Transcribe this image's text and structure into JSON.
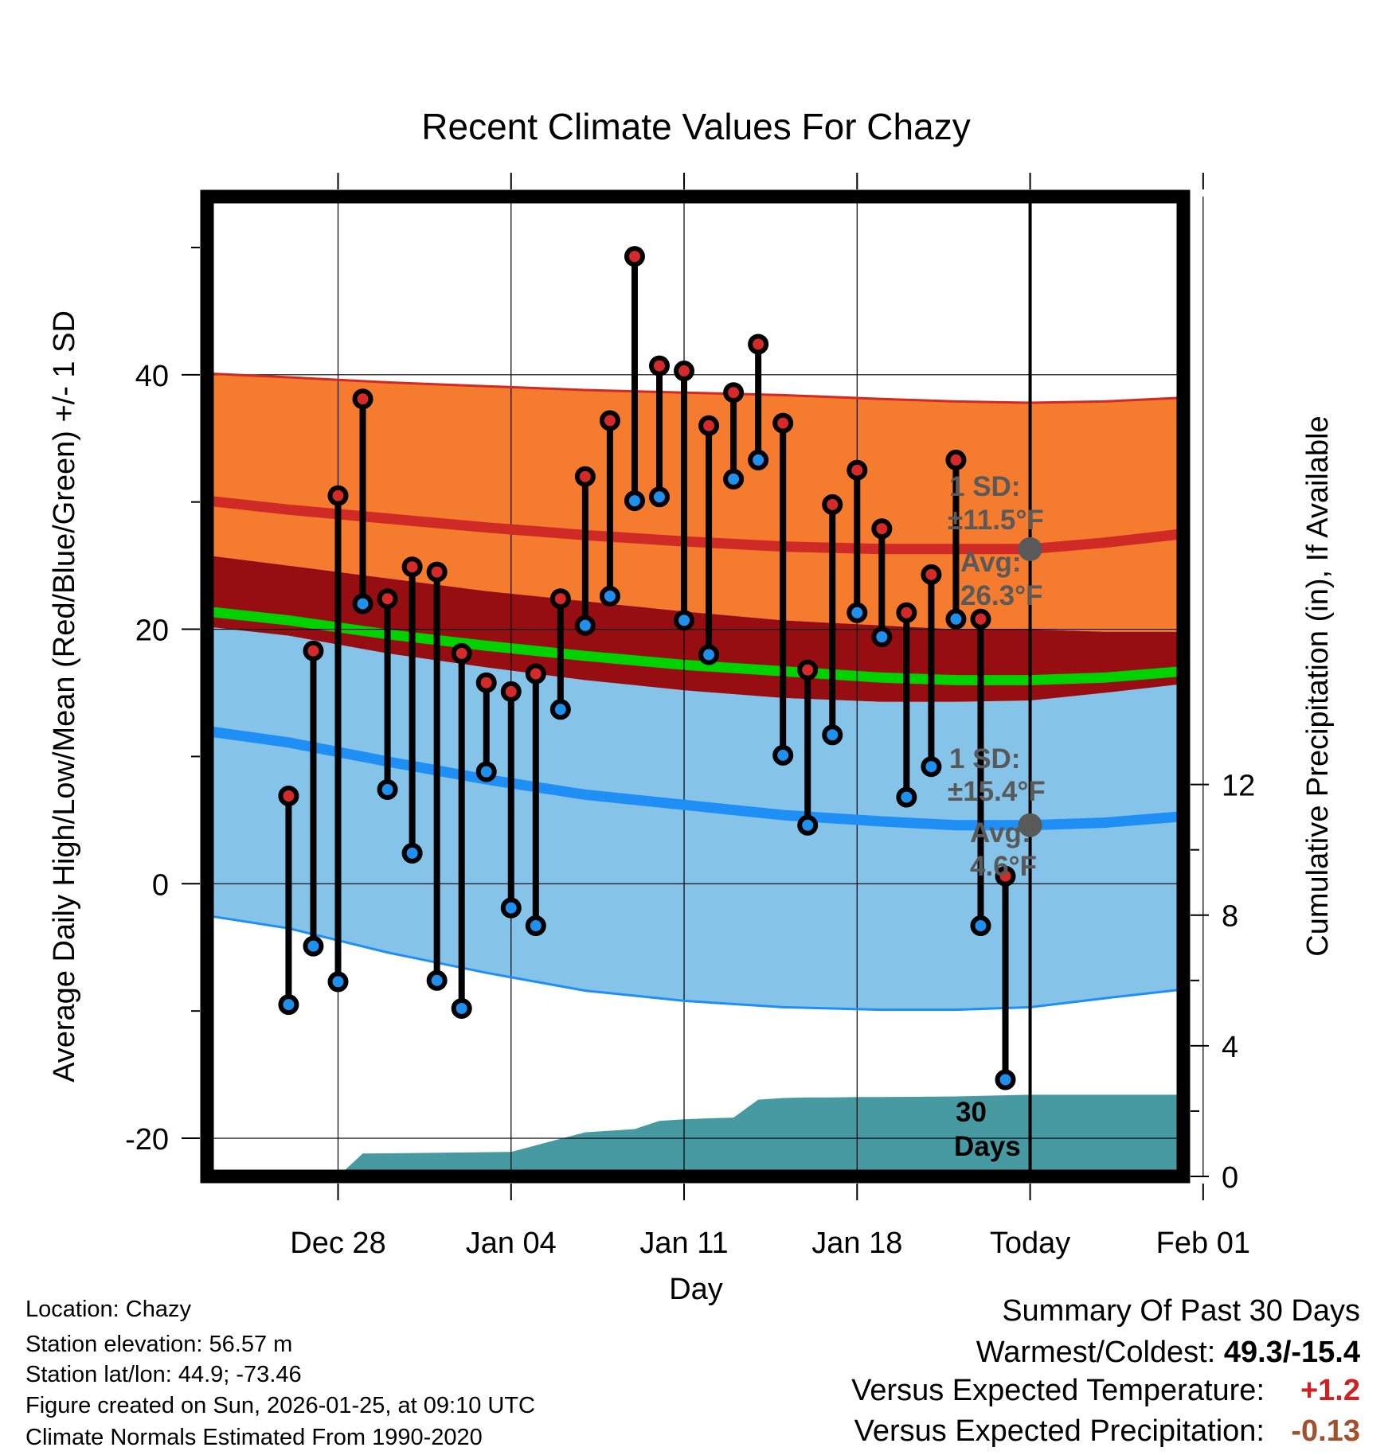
{
  "chart_data": {
    "type": "line",
    "title": "Recent Climate Values For Chazy",
    "xlabel": "Day",
    "ylabel": "Average Daily High/Low/Mean (Red/Blue/Green) +/- 1 SD",
    "y2label": "Cumulative Precipitation (in), If Available",
    "ylim": [
      -23,
      54
    ],
    "y2lim": [
      0,
      30
    ],
    "xlim": [
      -5.3,
      34.2
    ],
    "x_ticks": [
      {
        "day": 0,
        "label": "Dec 28"
      },
      {
        "day": 7,
        "label": "Jan 04"
      },
      {
        "day": 14,
        "label": "Jan 11"
      },
      {
        "day": 21,
        "label": "Jan 18"
      },
      {
        "day": 28,
        "label": "Today"
      },
      {
        "day": 35,
        "label": "Feb 01"
      }
    ],
    "y_ticks": [
      -20,
      0,
      20,
      40
    ],
    "y2_ticks": [
      0,
      4,
      8,
      12
    ],
    "today_day": 28,
    "days": [
      -2,
      -1,
      0,
      1,
      2,
      3,
      4,
      5,
      6,
      7,
      8,
      9,
      10,
      11,
      12,
      13,
      14,
      15,
      16,
      17,
      18,
      19,
      20,
      21,
      22,
      23,
      24,
      25,
      26,
      27
    ],
    "highs": [
      6.9,
      18.3,
      30.5,
      38.1,
      22.4,
      24.9,
      24.5,
      18.1,
      15.8,
      15.1,
      16.5,
      22.4,
      32.0,
      36.4,
      49.3,
      40.7,
      40.3,
      36.0,
      38.6,
      42.4,
      36.2,
      16.8,
      29.8,
      32.5,
      27.9,
      21.3,
      24.3,
      33.3,
      20.8,
      0.6
    ],
    "lows": [
      -9.5,
      -4.9,
      -7.7,
      22.0,
      7.4,
      2.4,
      -7.6,
      -9.8,
      8.8,
      -1.9,
      -3.3,
      13.7,
      20.3,
      22.6,
      30.1,
      30.4,
      20.7,
      18.0,
      31.8,
      33.3,
      10.1,
      4.6,
      11.7,
      21.3,
      19.4,
      6.8,
      9.2,
      20.8,
      -3.3,
      -15.4
    ],
    "normals": {
      "days": [
        -5.3,
        -2,
        2,
        6,
        10,
        14,
        18,
        22,
        25,
        28,
        31,
        34.2
      ],
      "high_mean": [
        30.1,
        29.4,
        28.7,
        28.0,
        27.4,
        26.9,
        26.5,
        26.3,
        26.3,
        26.3,
        26.8,
        27.5
      ],
      "high_upper": [
        40.1,
        39.8,
        39.4,
        39.1,
        38.8,
        38.6,
        38.4,
        38.1,
        37.9,
        37.8,
        37.9,
        38.2
      ],
      "low_mean": [
        12.0,
        11.1,
        9.6,
        8.2,
        7.0,
        6.2,
        5.4,
        4.9,
        4.6,
        4.6,
        4.8,
        5.3
      ],
      "low_lower": [
        -2.5,
        -3.5,
        -5.4,
        -7.0,
        -8.4,
        -9.2,
        -9.7,
        -9.9,
        -9.9,
        -9.7,
        -9.0,
        -8.3
      ],
      "mean_lower": [
        21.0,
        20.3,
        19.2,
        18.3,
        17.5,
        16.8,
        16.3,
        15.8,
        15.6,
        15.6,
        15.8,
        16.3
      ],
      "mean_upper": [
        21.8,
        21.1,
        20.0,
        19.1,
        18.3,
        17.6,
        17.1,
        16.6,
        16.4,
        16.4,
        16.6,
        17.1
      ],
      "overlap_upper": [
        25.8,
        25.0,
        24.0,
        23.0,
        22.2,
        21.4,
        20.7,
        20.3,
        20.0,
        20.0,
        19.8,
        19.8
      ],
      "overlap_lower": [
        20.2,
        19.5,
        18.1,
        17.0,
        16.0,
        15.2,
        14.6,
        14.3,
        14.3,
        14.4,
        15.0,
        15.7
      ]
    },
    "precip": {
      "days": [
        -5.3,
        0,
        1,
        7,
        8,
        9,
        10,
        11,
        12,
        13,
        14,
        15,
        16,
        17,
        18,
        19,
        20,
        21,
        22,
        25,
        28,
        29,
        34.2
      ],
      "values": [
        0,
        0,
        0.7,
        0.75,
        0.95,
        1.15,
        1.35,
        1.4,
        1.45,
        1.7,
        1.75,
        1.78,
        1.8,
        2.35,
        2.4,
        2.42,
        2.42,
        2.43,
        2.43,
        2.45,
        2.5,
        2.5,
        2.5
      ]
    },
    "annotations": {
      "high_sd_label": "1 SD:",
      "high_sd_value": "±11.5°F",
      "high_avg_label": "Avg:",
      "high_avg_value": "26.3°F",
      "high_avg": 26.3,
      "low_sd_label": "1 SD:",
      "low_sd_value": "±15.4°F",
      "low_avg_label": "Avg:",
      "low_avg_value": "4.6°F",
      "low_avg": 4.6,
      "precip_days_line1": "30",
      "precip_days_line2": "Days"
    },
    "colors": {
      "high_band": "#f57c2e",
      "high_line": "#d02a26",
      "overlap_band": "#960e12",
      "low_band": "#85c3e8",
      "low_line": "#1f8ff5",
      "mean_band": "#00d200",
      "precip": "#4799a2",
      "annotation": "#595959",
      "high_dot": "#d42a2a",
      "low_dot": "#2090ef"
    }
  },
  "info": {
    "location": "Location: Chazy",
    "elevation": "Station elevation: 56.57 m",
    "latlon": "Station lat/lon: 44.9; -73.46",
    "created": "Figure created on Sun, 2026-01-25, at 09:10 UTC",
    "normals": "Climate Normals Estimated From 1990-2020"
  },
  "summary": {
    "title": "Summary Of Past 30 Days",
    "warmest_label": "Warmest/Coldest: ",
    "warmest_value": "49.3/-15.4",
    "temp_label": "Versus Expected Temperature:",
    "temp_value": "+1.2",
    "temp_color": "#cc2222",
    "precip_label": "Versus Expected Precipitation:",
    "precip_value": "-0.13",
    "precip_color": "#a0522d"
  }
}
